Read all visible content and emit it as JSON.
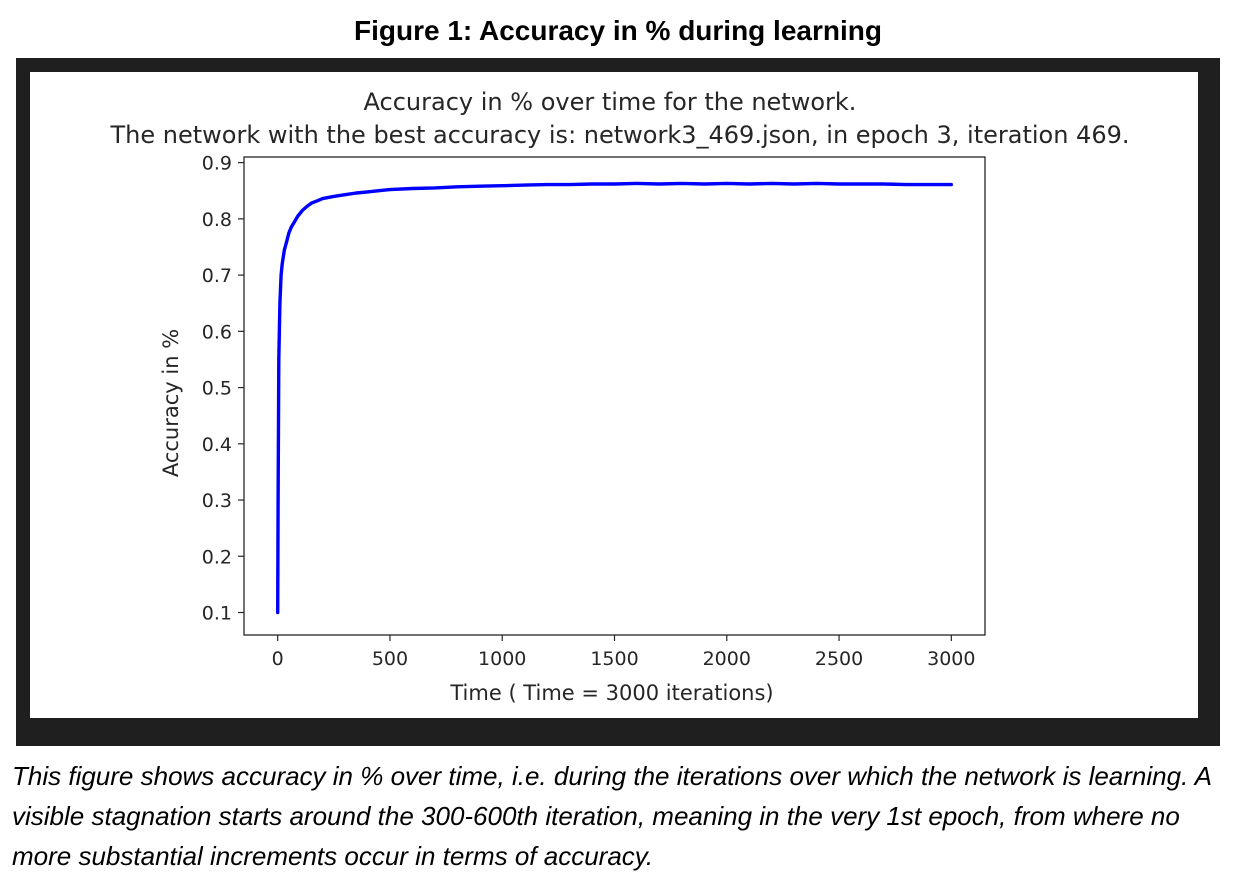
{
  "figure": {
    "heading": "Figure 1: Accuracy in % during learning",
    "caption": "This figure shows accuracy in % over time, i.e. during the iterations over which the network is learning. A visible stagnation starts around the 300-600th iteration, meaning in the very 1st epoch, from where no more substantial increments occur in terms of accuracy."
  },
  "chart_data": {
    "type": "line",
    "title": "Accuracy in % over time for the network.",
    "subtitle": "The network with the best accuracy is: network3_469.json, in epoch 3, iteration 469.",
    "xlabel": "Time ( Time = 3000 iterations)",
    "ylabel": "Accuracy in %",
    "xlim": [
      -150,
      3150
    ],
    "ylim": [
      0.06,
      0.91
    ],
    "xticks": [
      0,
      500,
      1000,
      1500,
      2000,
      2500,
      3000
    ],
    "yticks": [
      0.1,
      0.2,
      0.3,
      0.4,
      0.5,
      0.6,
      0.7,
      0.8,
      0.9
    ],
    "grid": false,
    "legend": "none",
    "series": [
      {
        "color": "#0000ff",
        "x": [
          0,
          2,
          5,
          10,
          15,
          20,
          30,
          40,
          50,
          60,
          75,
          90,
          110,
          130,
          150,
          175,
          200,
          250,
          300,
          350,
          400,
          450,
          500,
          600,
          700,
          800,
          900,
          1000,
          1100,
          1200,
          1300,
          1400,
          1500,
          1600,
          1700,
          1800,
          1900,
          2000,
          2100,
          2200,
          2300,
          2400,
          2500,
          2600,
          2700,
          2800,
          2900,
          3000
        ],
        "y": [
          0.1,
          0.3,
          0.55,
          0.65,
          0.7,
          0.72,
          0.745,
          0.76,
          0.775,
          0.785,
          0.795,
          0.805,
          0.815,
          0.822,
          0.828,
          0.832,
          0.836,
          0.84,
          0.843,
          0.846,
          0.848,
          0.85,
          0.852,
          0.854,
          0.855,
          0.857,
          0.858,
          0.859,
          0.86,
          0.861,
          0.861,
          0.862,
          0.862,
          0.863,
          0.862,
          0.863,
          0.862,
          0.863,
          0.862,
          0.863,
          0.862,
          0.863,
          0.862,
          0.862,
          0.862,
          0.861,
          0.861,
          0.861
        ]
      }
    ]
  }
}
